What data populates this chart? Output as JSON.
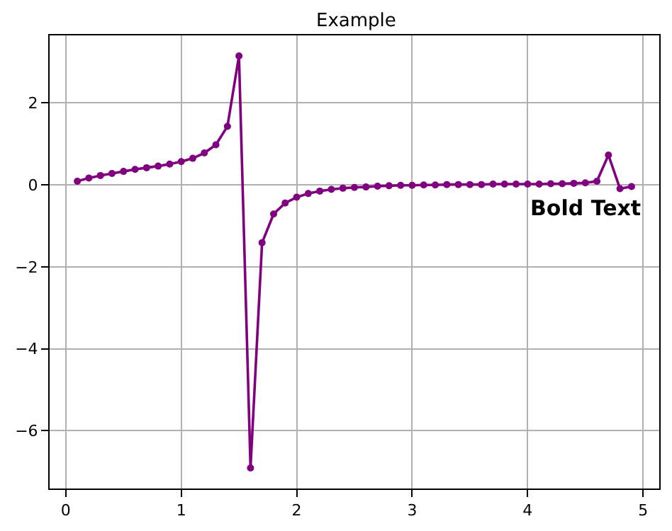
{
  "chart_data": {
    "type": "line",
    "title": "Example",
    "annotations": [
      "Bold Text"
    ],
    "x": [
      0.1,
      0.2,
      0.3,
      0.4,
      0.5,
      0.6,
      0.7,
      0.8,
      0.9,
      1.0,
      1.1,
      1.2,
      1.3,
      1.4,
      1.5,
      1.6,
      1.7,
      1.8,
      1.9,
      2.0,
      2.1,
      2.2,
      2.3,
      2.4,
      2.5,
      2.6,
      2.7,
      2.8,
      2.9,
      3.0,
      3.1,
      3.2,
      3.3,
      3.4,
      3.5,
      3.6,
      3.7,
      3.8,
      3.9,
      4.0,
      4.1,
      4.2,
      4.3,
      4.4,
      4.5,
      4.6,
      4.7,
      4.8,
      4.9
    ],
    "series": [
      {
        "color": "#800080",
        "values": [
          0.09,
          0.17,
          0.23,
          0.28,
          0.33,
          0.38,
          0.42,
          0.46,
          0.51,
          0.57,
          0.65,
          0.78,
          0.98,
          1.43,
          3.15,
          -6.91,
          -1.41,
          -0.71,
          -0.44,
          -0.3,
          -0.21,
          -0.15,
          -0.11,
          -0.08,
          -0.06,
          -0.05,
          -0.03,
          -0.02,
          -0.01,
          -0.01,
          0.0,
          0.0,
          0.01,
          0.01,
          0.01,
          0.01,
          0.02,
          0.02,
          0.02,
          0.02,
          0.02,
          0.03,
          0.03,
          0.04,
          0.05,
          0.09,
          0.73,
          -0.09,
          -0.04
        ]
      }
    ],
    "xlim": [
      -0.14,
      5.14
    ],
    "ylim": [
      -7.41,
      3.65
    ],
    "xticks": [
      0,
      1,
      2,
      3,
      4,
      5
    ],
    "yticks": [
      -6,
      -4,
      -2,
      0,
      2
    ],
    "grid": true,
    "marker": "circle",
    "line_style": "solid"
  }
}
